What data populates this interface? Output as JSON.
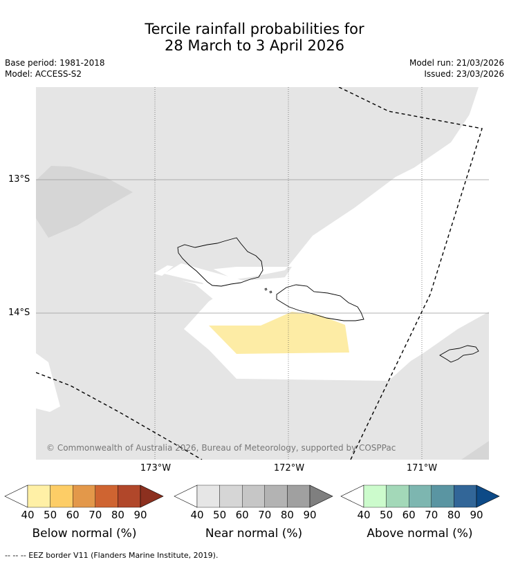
{
  "title": {
    "line1": "Tercile rainfall probabilities for",
    "line2": "28 March to 3 April 2026"
  },
  "meta": {
    "base_period": "Base period: 1981-2018",
    "model": "Model: ACCESS-S2",
    "model_run": "Model run: 21/03/2026",
    "issued": "Issued: 23/03/2026"
  },
  "map": {
    "lat_labels": [
      "13°S",
      "14°S"
    ],
    "lon_labels": [
      "173°W",
      "172°W",
      "171°W"
    ],
    "copyright": "© Commonwealth of Australia 2026, Bureau of Meteorology, supported by COSPPac",
    "colors": {
      "near_normal_40_50": "#e5e5e5",
      "near_normal_50_60": "#d5d5d5",
      "below_normal_40_50": "#fdeca5",
      "background": "#ffffff"
    }
  },
  "legend": {
    "ticks": [
      "40",
      "50",
      "60",
      "70",
      "80",
      "90"
    ],
    "below": {
      "label": "Below normal (%)",
      "colors": [
        "#fff0a6",
        "#fdcd66",
        "#e3984a",
        "#cf6431",
        "#b1472a",
        "#8c301f"
      ]
    },
    "near": {
      "label": "Near normal (%)",
      "colors": [
        "#e6e6e6",
        "#d6d6d6",
        "#c6c6c6",
        "#b3b3b3",
        "#a0a0a0",
        "#7f7f7f"
      ]
    },
    "above": {
      "label": "Above normal (%)",
      "colors": [
        "#ccfbcc",
        "#a3d8b8",
        "#7db6b0",
        "#5a95a2",
        "#326698",
        "#0d4a87"
      ]
    }
  },
  "footer": {
    "eez_note": "--  --  -- EEZ border V11 (Flanders Marine Institute, 2019)."
  }
}
